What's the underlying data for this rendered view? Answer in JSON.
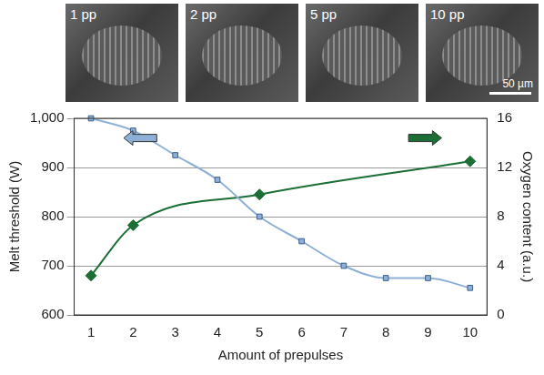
{
  "image_panels": [
    "1 pp",
    "2 pp",
    "5 pp",
    "10 pp"
  ],
  "scale_bar": "50 µm",
  "chart_data": {
    "type": "line",
    "x_label": "Amount of prepulses",
    "y_label": "Melt threshold (W)",
    "y2_label": "Oxygen content (a.u.)",
    "xlim": [
      0.6,
      10.4
    ],
    "xticks": [
      1,
      2,
      3,
      4,
      5,
      6,
      7,
      8,
      9,
      10
    ],
    "ylim": [
      600,
      1000
    ],
    "yticks": [
      600,
      700,
      800,
      900,
      1000
    ],
    "y2lim": [
      0,
      16
    ],
    "y2ticks": [
      0,
      4,
      8,
      12,
      16
    ],
    "grid": true,
    "series": [
      {
        "x": [
          1,
          2,
          3,
          4,
          5,
          6,
          7,
          8,
          9,
          10
        ],
        "values": [
          1000,
          975,
          925,
          875,
          800,
          750,
          700,
          675,
          675,
          655
        ],
        "color": "#8fb0d6",
        "marker": "square",
        "line_style": "solid",
        "axis": "y"
      },
      {
        "x": [
          1,
          2,
          5,
          10
        ],
        "values": [
          3.2,
          7.3,
          9.8,
          12.5
        ],
        "color": "#1b6e35",
        "marker": "diamond",
        "line_style": "solid",
        "axis": "y2"
      }
    ]
  }
}
